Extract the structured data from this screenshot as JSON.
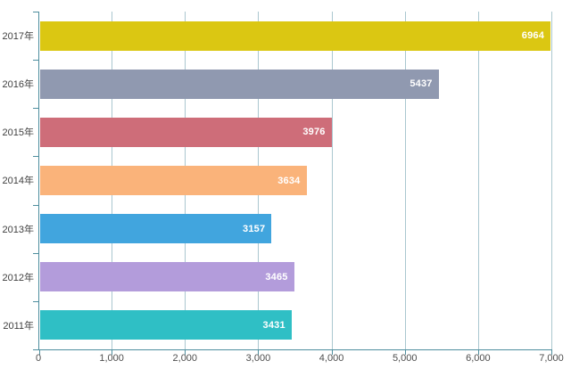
{
  "chart_data": {
    "type": "bar",
    "orientation": "horizontal",
    "categories": [
      "2017年",
      "2016年",
      "2015年",
      "2014年",
      "2013年",
      "2012年",
      "2011年"
    ],
    "values": [
      6964,
      5437,
      3976,
      3634,
      3157,
      3465,
      3431
    ],
    "bar_colors": [
      "#dbc712",
      "#9099b0",
      "#ce6d79",
      "#fab37a",
      "#41a5de",
      "#b39cdb",
      "#2fbfc5"
    ],
    "value_label_color": "#ffffff",
    "xlim": [
      0,
      7000
    ],
    "xticks": [
      {
        "value": 0,
        "label": "0"
      },
      {
        "value": 1000,
        "label": "1,000"
      },
      {
        "value": 2000,
        "label": "2,000"
      },
      {
        "value": 3000,
        "label": "3,000"
      },
      {
        "value": 4000,
        "label": "4,000"
      },
      {
        "value": 5000,
        "label": "5,000"
      },
      {
        "value": 6000,
        "label": "6,000"
      },
      {
        "value": 7000,
        "label": "7,000"
      }
    ],
    "grid": "vertical-only",
    "legend": "none",
    "axis_color": "#4e8e9e",
    "grid_color": "#aac7cf"
  }
}
